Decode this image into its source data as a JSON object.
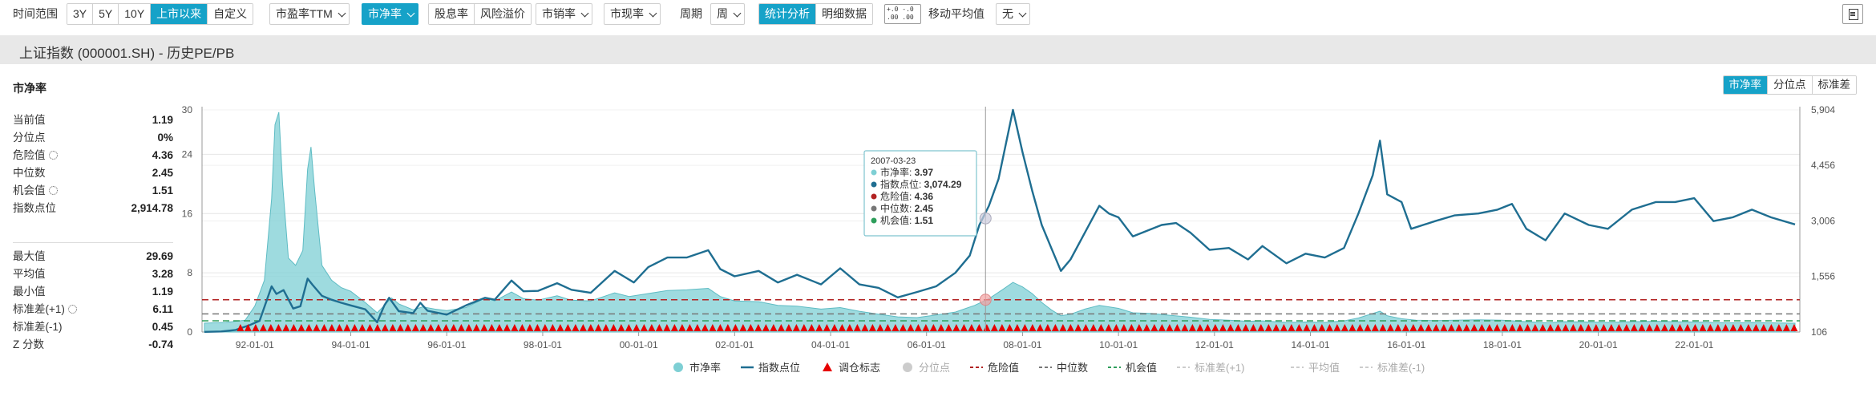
{
  "toolbar": {
    "period_label": "时间范围",
    "ranges": [
      "3Y",
      "5Y",
      "10Y",
      "上市以来",
      "自定义"
    ],
    "active_range": "上市以来",
    "metric_pe": "市盈率TTM",
    "metric_pb": "市净率",
    "metric_dividend": "股息率",
    "metric_risk": "风险溢价",
    "metric_ps": "市销率",
    "metric_pcf": "市现率",
    "cycle_label": "周期",
    "cycle_value": "周",
    "analysis_tabs": [
      "统计分析",
      "明细数据"
    ],
    "ma_icon_text": [
      "+.0",
      ".00",
      "-.0",
      ".00"
    ],
    "ma_label": "移动平均值",
    "ma_value": "无",
    "export_icon": "export-icon"
  },
  "title": "上证指数 (000001.SH) - 历史PE/PB",
  "panel": {
    "title": "市净率",
    "view_tabs": [
      "市净率",
      "分位点",
      "标准差"
    ],
    "active_view": "市净率",
    "stats_top": [
      {
        "label": "当前值",
        "value": "1.19",
        "gear": false
      },
      {
        "label": "分位点",
        "value": "0%",
        "gear": false
      },
      {
        "label": "危险值",
        "value": "4.36",
        "gear": true
      },
      {
        "label": "中位数",
        "value": "2.45",
        "gear": false
      },
      {
        "label": "机会值",
        "value": "1.51",
        "gear": true
      },
      {
        "label": "指数点位",
        "value": "2,914.78",
        "gear": false
      }
    ],
    "stats_bottom": [
      {
        "label": "最大值",
        "value": "29.69",
        "gear": false
      },
      {
        "label": "平均值",
        "value": "3.28",
        "gear": false
      },
      {
        "label": "最小值",
        "value": "1.19",
        "gear": false
      },
      {
        "label": "标准差(+1)",
        "value": "6.11",
        "gear": true
      },
      {
        "label": "标准差(-1)",
        "value": "0.45",
        "gear": false
      },
      {
        "label": "Z 分数",
        "value": "-0.74",
        "gear": false
      }
    ]
  },
  "chart_data": {
    "type": "area",
    "x_ticks": [
      "92-01-01",
      "94-01-01",
      "96-01-01",
      "98-01-01",
      "00-01-01",
      "02-01-01",
      "04-01-01",
      "06-01-01",
      "08-01-01",
      "10-01-01",
      "12-01-01",
      "14-01-01",
      "16-01-01",
      "18-01-01",
      "20-01-01",
      "22-01-01"
    ],
    "x_range": [
      1990.9,
      2024.2
    ],
    "y_left_ticks": [
      0,
      8,
      16,
      24,
      30
    ],
    "y_left_range": [
      0,
      30
    ],
    "y_right_ticks": [
      "106",
      "1,556",
      "3,006",
      "4,456",
      "5,904"
    ],
    "y_right_range": [
      106,
      5904
    ],
    "reference_lines": {
      "danger": 4.36,
      "median": 2.45,
      "opportunity": 1.51
    },
    "series": [
      {
        "name": "市净率",
        "color": "#7ecfd4",
        "points": [
          [
            1990.95,
            1.2
          ],
          [
            1991.4,
            1.3
          ],
          [
            1991.8,
            1.6
          ],
          [
            1992.0,
            3.5
          ],
          [
            1992.2,
            7
          ],
          [
            1992.35,
            18
          ],
          [
            1992.42,
            28
          ],
          [
            1992.5,
            29.69
          ],
          [
            1992.58,
            20
          ],
          [
            1992.7,
            10
          ],
          [
            1992.85,
            9
          ],
          [
            1993.0,
            11
          ],
          [
            1993.1,
            22
          ],
          [
            1993.17,
            25
          ],
          [
            1993.25,
            19
          ],
          [
            1993.4,
            9
          ],
          [
            1993.6,
            7
          ],
          [
            1993.8,
            6
          ],
          [
            1994.0,
            5.5
          ],
          [
            1994.3,
            4
          ],
          [
            1994.55,
            2.6
          ],
          [
            1994.7,
            3.6
          ],
          [
            1994.85,
            4.6
          ],
          [
            1995.0,
            3.8
          ],
          [
            1995.3,
            3
          ],
          [
            1995.5,
            3.4
          ],
          [
            1995.75,
            3.1
          ],
          [
            1996.0,
            2.9
          ],
          [
            1996.4,
            3.3
          ],
          [
            1996.8,
            4.6
          ],
          [
            1997.0,
            4.2
          ],
          [
            1997.35,
            5.4
          ],
          [
            1997.6,
            4.5
          ],
          [
            1997.9,
            4.3
          ],
          [
            1998.3,
            4.9
          ],
          [
            1998.6,
            4.3
          ],
          [
            1999.0,
            4.2
          ],
          [
            1999.5,
            5.3
          ],
          [
            1999.8,
            4.8
          ],
          [
            2000.2,
            5.2
          ],
          [
            2000.6,
            5.6
          ],
          [
            2001.0,
            5.7
          ],
          [
            2001.45,
            5.9
          ],
          [
            2001.7,
            4.8
          ],
          [
            2002.0,
            4.2
          ],
          [
            2002.5,
            4.1
          ],
          [
            2002.9,
            3.6
          ],
          [
            2003.3,
            3.5
          ],
          [
            2003.8,
            3.1
          ],
          [
            2004.2,
            3.3
          ],
          [
            2004.6,
            2.8
          ],
          [
            2005.0,
            2.4
          ],
          [
            2005.4,
            2.05
          ],
          [
            2005.8,
            1.95
          ],
          [
            2006.2,
            2.3
          ],
          [
            2006.6,
            2.7
          ],
          [
            2007.0,
            3.6
          ],
          [
            2007.3,
            4.5
          ],
          [
            2007.6,
            5.8
          ],
          [
            2007.8,
            6.7
          ],
          [
            2008.0,
            6.1
          ],
          [
            2008.2,
            5.2
          ],
          [
            2008.4,
            4
          ],
          [
            2008.6,
            3
          ],
          [
            2008.8,
            2.2
          ],
          [
            2009.0,
            2.4
          ],
          [
            2009.3,
            3.1
          ],
          [
            2009.6,
            3.6
          ],
          [
            2009.8,
            3.4
          ],
          [
            2010.0,
            3.2
          ],
          [
            2010.3,
            2.6
          ],
          [
            2010.7,
            2.5
          ],
          [
            2011.0,
            2.3
          ],
          [
            2011.5,
            2
          ],
          [
            2011.9,
            1.7
          ],
          [
            2012.3,
            1.6
          ],
          [
            2012.7,
            1.45
          ],
          [
            2013.0,
            1.5
          ],
          [
            2013.5,
            1.3
          ],
          [
            2013.9,
            1.35
          ],
          [
            2014.3,
            1.3
          ],
          [
            2014.7,
            1.5
          ],
          [
            2015.0,
            1.9
          ],
          [
            2015.3,
            2.5
          ],
          [
            2015.45,
            2.8
          ],
          [
            2015.6,
            2.2
          ],
          [
            2015.9,
            1.8
          ],
          [
            2016.2,
            1.6
          ],
          [
            2016.6,
            1.55
          ],
          [
            2017.0,
            1.6
          ],
          [
            2017.5,
            1.65
          ],
          [
            2018.0,
            1.6
          ],
          [
            2018.5,
            1.4
          ],
          [
            2018.9,
            1.25
          ],
          [
            2019.3,
            1.4
          ],
          [
            2019.8,
            1.35
          ],
          [
            2020.2,
            1.3
          ],
          [
            2020.7,
            1.4
          ],
          [
            2021.2,
            1.45
          ],
          [
            2021.6,
            1.4
          ],
          [
            2022.0,
            1.35
          ],
          [
            2022.4,
            1.3
          ],
          [
            2022.8,
            1.25
          ],
          [
            2023.2,
            1.3
          ],
          [
            2023.6,
            1.25
          ],
          [
            2024.1,
            1.19
          ]
        ]
      },
      {
        "name": "指数点位",
        "color": "#1f6e91",
        "points": [
          [
            1990.95,
            110
          ],
          [
            1991.3,
            120
          ],
          [
            1991.6,
            160
          ],
          [
            1991.9,
            290
          ],
          [
            1992.1,
            400
          ],
          [
            1992.35,
            1300
          ],
          [
            1992.45,
            1100
          ],
          [
            1992.6,
            1200
          ],
          [
            1992.8,
            720
          ],
          [
            1992.95,
            780
          ],
          [
            1993.1,
            1500
          ],
          [
            1993.2,
            1340
          ],
          [
            1993.4,
            1050
          ],
          [
            1993.6,
            950
          ],
          [
            1993.8,
            870
          ],
          [
            1994.0,
            800
          ],
          [
            1994.3,
            700
          ],
          [
            1994.55,
            360
          ],
          [
            1994.7,
            800
          ],
          [
            1994.8,
            1000
          ],
          [
            1995.0,
            650
          ],
          [
            1995.3,
            600
          ],
          [
            1995.45,
            870
          ],
          [
            1995.6,
            660
          ],
          [
            1996.0,
            560
          ],
          [
            1996.4,
            800
          ],
          [
            1996.8,
            1000
          ],
          [
            1997.0,
            950
          ],
          [
            1997.35,
            1450
          ],
          [
            1997.6,
            1170
          ],
          [
            1997.9,
            1180
          ],
          [
            1998.3,
            1380
          ],
          [
            1998.6,
            1210
          ],
          [
            1999.0,
            1130
          ],
          [
            1999.5,
            1700
          ],
          [
            1999.7,
            1550
          ],
          [
            1999.9,
            1400
          ],
          [
            2000.2,
            1800
          ],
          [
            2000.6,
            2050
          ],
          [
            2001.0,
            2050
          ],
          [
            2001.45,
            2240
          ],
          [
            2001.7,
            1750
          ],
          [
            2002.0,
            1560
          ],
          [
            2002.5,
            1700
          ],
          [
            2002.9,
            1400
          ],
          [
            2003.3,
            1600
          ],
          [
            2003.8,
            1350
          ],
          [
            2004.2,
            1770
          ],
          [
            2004.6,
            1350
          ],
          [
            2005.0,
            1260
          ],
          [
            2005.4,
            1010
          ],
          [
            2005.8,
            1150
          ],
          [
            2006.2,
            1300
          ],
          [
            2006.6,
            1650
          ],
          [
            2006.9,
            2100
          ],
          [
            2007.1,
            2900
          ],
          [
            2007.3,
            3400
          ],
          [
            2007.5,
            4100
          ],
          [
            2007.7,
            5300
          ],
          [
            2007.8,
            5904
          ],
          [
            2008.0,
            4800
          ],
          [
            2008.2,
            3800
          ],
          [
            2008.4,
            2900
          ],
          [
            2008.6,
            2300
          ],
          [
            2008.8,
            1700
          ],
          [
            2009.0,
            2000
          ],
          [
            2009.3,
            2700
          ],
          [
            2009.6,
            3400
          ],
          [
            2009.8,
            3200
          ],
          [
            2010.0,
            3100
          ],
          [
            2010.3,
            2600
          ],
          [
            2010.7,
            2800
          ],
          [
            2010.9,
            2900
          ],
          [
            2011.2,
            2950
          ],
          [
            2011.5,
            2700
          ],
          [
            2011.9,
            2250
          ],
          [
            2012.3,
            2300
          ],
          [
            2012.7,
            2000
          ],
          [
            2013.0,
            2350
          ],
          [
            2013.5,
            1900
          ],
          [
            2013.9,
            2150
          ],
          [
            2014.3,
            2050
          ],
          [
            2014.7,
            2300
          ],
          [
            2015.0,
            3200
          ],
          [
            2015.3,
            4200
          ],
          [
            2015.45,
            5100
          ],
          [
            2015.6,
            3700
          ],
          [
            2015.9,
            3500
          ],
          [
            2016.1,
            2800
          ],
          [
            2016.6,
            3000
          ],
          [
            2017.0,
            3150
          ],
          [
            2017.5,
            3200
          ],
          [
            2017.9,
            3300
          ],
          [
            2018.2,
            3450
          ],
          [
            2018.5,
            2800
          ],
          [
            2018.9,
            2500
          ],
          [
            2019.3,
            3200
          ],
          [
            2019.8,
            2900
          ],
          [
            2020.2,
            2800
          ],
          [
            2020.7,
            3300
          ],
          [
            2021.2,
            3500
          ],
          [
            2021.6,
            3500
          ],
          [
            2022.0,
            3600
          ],
          [
            2022.4,
            3000
          ],
          [
            2022.8,
            3100
          ],
          [
            2023.2,
            3300
          ],
          [
            2023.6,
            3100
          ],
          [
            2024.1,
            2914.78
          ]
        ]
      }
    ],
    "tooltip": {
      "date": "2007-03-23",
      "rows": [
        {
          "label": "市净率",
          "value": "3.97",
          "color": "#7ecfd4"
        },
        {
          "label": "指数点位",
          "value": "3,074.29",
          "color": "#1f6e91"
        },
        {
          "label": "危险值",
          "value": "4.36",
          "color": "#b22222"
        },
        {
          "label": "中位数",
          "value": "2.45",
          "color": "#777777"
        },
        {
          "label": "机会值",
          "value": "1.51",
          "color": "#2e9e5b"
        }
      ]
    },
    "legend": [
      {
        "label": "市净率",
        "color": "#7ecfd4",
        "shape": "circle",
        "active": true
      },
      {
        "label": "指数点位",
        "color": "#1f6e91",
        "shape": "line",
        "active": true
      },
      {
        "label": "调仓标志",
        "color": "#e60000",
        "shape": "triangle",
        "active": true
      },
      {
        "label": "分位点",
        "color": "#cccccc",
        "shape": "circle",
        "active": false
      },
      {
        "label": "危险值",
        "color": "#b22222",
        "shape": "dash",
        "active": true
      },
      {
        "label": "中位数",
        "color": "#777777",
        "shape": "dash",
        "active": true
      },
      {
        "label": "机会值",
        "color": "#2e9e5b",
        "shape": "dash",
        "active": true
      },
      {
        "label": "标准差(+1)",
        "color": "#cccccc",
        "shape": "dash",
        "active": false
      },
      {
        "label": "平均值",
        "color": "#cccccc",
        "shape": "dash",
        "active": false
      },
      {
        "label": "标准差(-1)",
        "color": "#cccccc",
        "shape": "dash",
        "active": false
      }
    ]
  }
}
